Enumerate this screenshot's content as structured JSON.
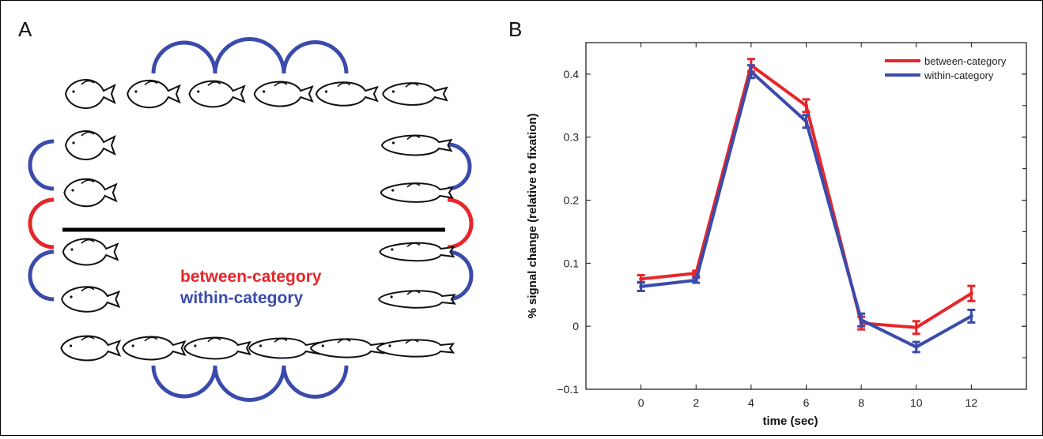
{
  "panels": {
    "a": {
      "letter": "A",
      "between_label": "between-category",
      "within_label": "within-category",
      "colors": {
        "between": "#e8262a",
        "within": "#3b4bab",
        "boundary": "#000000"
      },
      "fish_grid": {
        "top_row": 6,
        "left_column": 4,
        "right_column": 4,
        "bottom_row": 6
      }
    },
    "b": {
      "letter": "B"
    }
  },
  "chart_data": {
    "type": "line",
    "xlabel": "time (sec)",
    "ylabel": "% signal change (relative to fixation)",
    "x": [
      0,
      2,
      4,
      6,
      8,
      10,
      12
    ],
    "xlim": [
      -2,
      14
    ],
    "ylim": [
      -0.1,
      0.45
    ],
    "xticks": [
      0,
      2,
      4,
      6,
      8,
      10,
      12
    ],
    "yticks": [
      -0.1,
      0,
      0.1,
      0.2,
      0.3,
      0.4
    ],
    "xtick_labels": [
      "0",
      "2",
      "4",
      "6",
      "8",
      "10",
      "12"
    ],
    "ytick_labels": [
      "−0.1",
      "0",
      "0.1",
      "0.2",
      "0.3",
      "0.4"
    ],
    "legend_position": "top-right",
    "series": [
      {
        "name": "between-category",
        "color": "#e8262a",
        "values": [
          0.075,
          0.084,
          0.414,
          0.35,
          0.005,
          -0.002,
          0.052
        ],
        "errors": [
          0.006,
          0.004,
          0.01,
          0.01,
          0.01,
          0.01,
          0.012
        ]
      },
      {
        "name": "within-category",
        "color": "#3b4bab",
        "values": [
          0.063,
          0.073,
          0.404,
          0.325,
          0.01,
          -0.033,
          0.016
        ],
        "errors": [
          0.007,
          0.004,
          0.01,
          0.01,
          0.01,
          0.008,
          0.01
        ]
      }
    ]
  }
}
